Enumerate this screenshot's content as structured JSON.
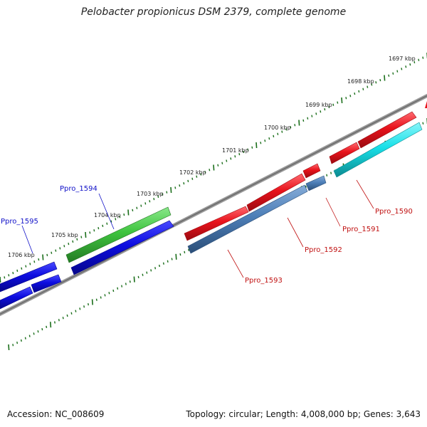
{
  "title": "Pelobacter propionicus DSM 2379, complete genome",
  "footer": {
    "accession": "Accession: NC_008609",
    "summary": "Topology: circular; Length: 4,008,000 bp; Genes: 3,643"
  },
  "ticks": [
    "1697 kbp",
    "1698 kbp",
    "1699 kbp",
    "1700 kbp",
    "1701 kbp",
    "1702 kbp",
    "1703 kbp",
    "1704 kbp",
    "1705 kbp",
    "1706 kbp"
  ],
  "colors": {
    "backbone": "#777777",
    "tick": "#1a6e1a",
    "red": "#e8121b",
    "blue": "#0d0de0",
    "green": "#3fc43f",
    "steelblue": "#4d7fb8",
    "cyan": "#18e0e8",
    "label_blue": "#1010c8",
    "label_red": "#c01010"
  },
  "genes": [
    {
      "label": "Ppro_1590",
      "color": "red"
    },
    {
      "label": "Ppro_1591",
      "color": "red"
    },
    {
      "label": "Ppro_1592",
      "color": "red"
    },
    {
      "label": "Ppro_1593",
      "color": "red"
    },
    {
      "label": "Ppro_1594",
      "color": "label_blue"
    },
    {
      "label": "Ppro_1595",
      "color": "label_blue"
    }
  ]
}
